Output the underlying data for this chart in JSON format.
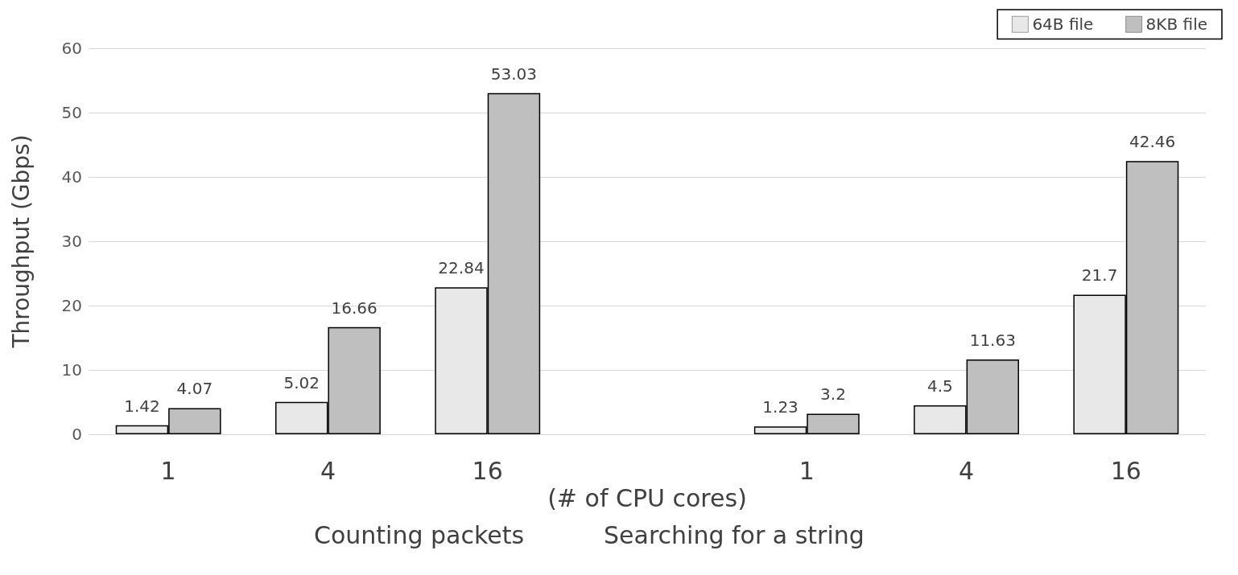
{
  "chart_data": {
    "type": "bar",
    "xlabel": "(# of CPU cores)",
    "ylabel": "Throughput (Gbps)",
    "categories": [
      "1",
      "4",
      "16",
      null,
      "1",
      "4",
      "16"
    ],
    "series": [
      {
        "name": "64B file",
        "color": "#e8e8e8",
        "values": [
          1.42,
          5.02,
          22.84,
          null,
          1.23,
          4.5,
          21.7
        ]
      },
      {
        "name": "8KB file",
        "color": "#bfbfbf",
        "values": [
          4.07,
          16.66,
          53.03,
          null,
          3.2,
          11.63,
          42.46
        ]
      }
    ],
    "ylim": [
      0,
      60
    ],
    "yticks": [
      0,
      10,
      20,
      30,
      40,
      50,
      60
    ],
    "grid": "y",
    "legend": "top right",
    "data_labels": true,
    "annotations": [
      "Counting packets",
      "Searching for a string"
    ]
  }
}
